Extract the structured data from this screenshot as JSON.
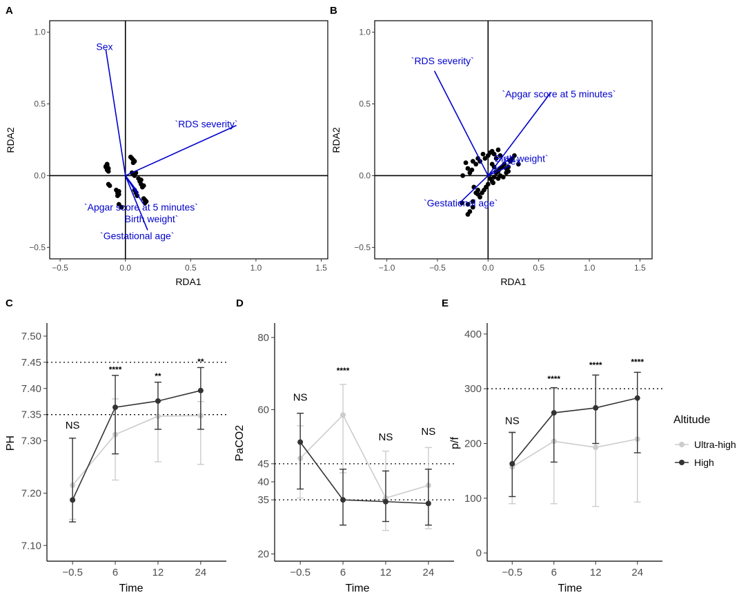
{
  "chart_data": [
    {
      "id": "A",
      "type": "scatter",
      "panel_label": "A",
      "xlabel": "RDA1",
      "ylabel": "RDA2",
      "xlim": [
        -0.58,
        1.55
      ],
      "ylim": [
        -0.58,
        1.08
      ],
      "xticks": [
        "-0.5",
        "0.0",
        "0.5",
        "1.0",
        "1.5"
      ],
      "xtick_values": [
        -0.5,
        0.0,
        0.5,
        1.0,
        1.5
      ],
      "yticks": [
        "-0.5",
        "0.0",
        "0.5",
        "1.0"
      ],
      "ytick_values": [
        -0.5,
        0.0,
        0.5,
        1.0
      ],
      "arrows": [
        {
          "label": "Sex",
          "x": -0.15,
          "y": 0.88,
          "lx": -0.16,
          "ly": 0.9,
          "anchor": "middle"
        },
        {
          "label": "`RDS severity`",
          "x": 0.85,
          "y": 0.35,
          "lx": 0.62,
          "ly": 0.36,
          "anchor": "middle"
        },
        {
          "label": "`Apgar score at 5 minutes`",
          "x": 0.1,
          "y": -0.12,
          "lx": 0.12,
          "ly": -0.22,
          "anchor": "middle"
        },
        {
          "label": "Birth weight`",
          "x": 0.14,
          "y": -0.2,
          "lx": 0.2,
          "ly": -0.3,
          "anchor": "middle"
        },
        {
          "label": "`Gestational age`",
          "x": 0.17,
          "y": -0.38,
          "lx": 0.09,
          "ly": -0.42,
          "anchor": "middle"
        }
      ],
      "points": [
        [
          -0.14,
          0.08
        ],
        [
          -0.14,
          0.07
        ],
        [
          -0.15,
          0.06
        ],
        [
          -0.13,
          0.05
        ],
        [
          -0.14,
          0.04
        ],
        [
          -0.13,
          0.03
        ],
        [
          -0.15,
          0.065
        ],
        [
          -0.12,
          -0.07
        ],
        [
          -0.13,
          -0.06
        ],
        [
          -0.07,
          -0.1
        ],
        [
          -0.06,
          -0.12
        ],
        [
          -0.05,
          -0.11
        ],
        [
          -0.06,
          -0.14
        ],
        [
          -0.05,
          -0.13
        ],
        [
          -0.05,
          -0.2
        ],
        [
          -0.03,
          -0.22
        ],
        [
          0.04,
          0.13
        ],
        [
          0.05,
          0.12
        ],
        [
          0.06,
          0.11
        ],
        [
          0.07,
          0.1
        ],
        [
          0.06,
          0.09
        ],
        [
          0.05,
          0.02
        ],
        [
          0.06,
          0.01
        ],
        [
          0.07,
          0.0
        ],
        [
          0.08,
          0.02
        ],
        [
          0.1,
          -0.02
        ],
        [
          0.11,
          -0.04
        ],
        [
          0.12,
          -0.03
        ],
        [
          0.12,
          -0.06
        ],
        [
          0.13,
          -0.08
        ],
        [
          0.14,
          -0.07
        ],
        [
          0.14,
          -0.16
        ],
        [
          0.15,
          -0.17
        ],
        [
          0.15,
          -0.19
        ],
        [
          0.16,
          -0.18
        ],
        [
          0.08,
          -0.12
        ],
        [
          0.09,
          -0.14
        ],
        [
          0.07,
          -0.1
        ]
      ]
    },
    {
      "id": "B",
      "type": "scatter",
      "panel_label": "B",
      "xlabel": "RDA1",
      "ylabel": "RDA2",
      "xlim": [
        -1.12,
        1.62
      ],
      "ylim": [
        -0.58,
        1.08
      ],
      "xticks": [
        "-1.0",
        "-0.5",
        "0.0",
        "0.5",
        "1.0",
        "1.5"
      ],
      "xtick_values": [
        -1.0,
        -0.5,
        0.0,
        0.5,
        1.0,
        1.5
      ],
      "yticks": [
        "-0.5",
        "0.0",
        "0.5",
        "1.0"
      ],
      "ytick_values": [
        -0.5,
        0.0,
        0.5,
        1.0
      ],
      "arrows": [
        {
          "label": "`RDS severity`",
          "x": -0.53,
          "y": 0.73,
          "lx": -0.45,
          "ly": 0.8,
          "anchor": "middle"
        },
        {
          "label": "`Apgar score at 5 minutes`",
          "x": 0.62,
          "y": 0.58,
          "lx": 0.7,
          "ly": 0.57,
          "anchor": "middle"
        },
        {
          "label": "Birth weight`",
          "x": 0.25,
          "y": 0.14,
          "lx": 0.33,
          "ly": 0.12,
          "anchor": "middle"
        },
        {
          "label": "Sex",
          "x": 0.22,
          "y": 0.07,
          "lx": 0.24,
          "ly": 0.1,
          "anchor": "middle"
        },
        {
          "label": "`Gestational age`",
          "x": -0.28,
          "y": -0.19,
          "lx": -0.27,
          "ly": -0.19,
          "anchor": "middle"
        }
      ],
      "points": [
        [
          -0.25,
          0.0
        ],
        [
          -0.26,
          -0.19
        ],
        [
          -0.2,
          -0.27
        ],
        [
          -0.15,
          -0.22
        ],
        [
          -0.15,
          -0.18
        ],
        [
          -0.1,
          -0.1
        ],
        [
          -0.1,
          0.12
        ],
        [
          -0.08,
          0.1
        ],
        [
          -0.05,
          0.15
        ],
        [
          -0.03,
          0.12
        ],
        [
          0.0,
          0.14
        ],
        [
          0.02,
          0.16
        ],
        [
          0.04,
          0.17
        ],
        [
          0.06,
          0.15
        ],
        [
          0.08,
          0.12
        ],
        [
          0.1,
          0.18
        ],
        [
          0.12,
          0.14
        ],
        [
          -0.2,
          0.05
        ],
        [
          -0.18,
          0.02
        ],
        [
          -0.12,
          0.08
        ],
        [
          -0.15,
          0.1
        ],
        [
          -0.22,
          0.09
        ],
        [
          -0.16,
          0.04
        ],
        [
          0.02,
          -0.02
        ],
        [
          0.04,
          -0.04
        ],
        [
          0.06,
          -0.01
        ],
        [
          0.08,
          0.02
        ],
        [
          0.1,
          0.03
        ],
        [
          0.12,
          0.05
        ],
        [
          0.14,
          0.06
        ],
        [
          0.16,
          0.08
        ],
        [
          0.18,
          0.05
        ],
        [
          0.2,
          0.03
        ],
        [
          0.22,
          0.1
        ],
        [
          0.24,
          0.12
        ],
        [
          0.26,
          0.14
        ],
        [
          0.3,
          0.08
        ],
        [
          0.0,
          -0.06
        ],
        [
          -0.02,
          -0.08
        ],
        [
          -0.04,
          -0.1
        ],
        [
          -0.06,
          -0.12
        ],
        [
          -0.08,
          -0.15
        ],
        [
          -0.1,
          -0.13
        ],
        [
          0.05,
          -0.05
        ],
        [
          0.1,
          -0.02
        ],
        [
          0.15,
          -0.01
        ],
        [
          0.18,
          0.02
        ],
        [
          0.2,
          0.06
        ],
        [
          0.12,
          0.0
        ],
        [
          -0.12,
          -0.12
        ],
        [
          -0.14,
          -0.08
        ],
        [
          -0.18,
          -0.25
        ],
        [
          -0.2,
          -0.2
        ],
        [
          0.04,
          0.08
        ],
        [
          0.06,
          0.06
        ]
      ]
    },
    {
      "id": "C",
      "type": "line",
      "panel_label": "C",
      "xlabel": "Time",
      "ylabel": "PH",
      "categories": [
        "-0.5",
        "6",
        "12",
        "24"
      ],
      "ylim": [
        7.07,
        7.525
      ],
      "yticks": [
        "7.10",
        "7.20",
        "7.30",
        "7.35",
        "7.40",
        "7.45",
        "7.50"
      ],
      "ytick_values": [
        7.1,
        7.2,
        7.3,
        7.35,
        7.4,
        7.45,
        7.5
      ],
      "hlines": [
        7.35,
        7.45
      ],
      "series": [
        {
          "name": "Ultra-high",
          "values": [
            7.215,
            7.312,
            7.347,
            7.348
          ],
          "lower": [
            7.15,
            7.225,
            7.26,
            7.255
          ],
          "upper": [
            7.305,
            7.38,
            7.375,
            7.375
          ]
        },
        {
          "name": "High",
          "values": [
            7.187,
            7.364,
            7.376,
            7.396
          ],
          "lower": [
            7.145,
            7.275,
            7.322,
            7.322
          ],
          "upper": [
            7.305,
            7.425,
            7.412,
            7.44
          ]
        }
      ],
      "significance": [
        "NS",
        "****",
        "**",
        "**"
      ],
      "sig_y": [
        7.323,
        7.431,
        7.418,
        7.446
      ]
    },
    {
      "id": "D",
      "type": "line",
      "panel_label": "D",
      "xlabel": "Time",
      "ylabel": "PaCO2",
      "categories": [
        "-0.5",
        "6",
        "12",
        "24"
      ],
      "ylim": [
        18,
        84
      ],
      "yticks": [
        "20",
        "35",
        "40",
        "45",
        "60",
        "80"
      ],
      "ytick_values": [
        20,
        35,
        40,
        45,
        60,
        80
      ],
      "hlines": [
        35,
        45
      ],
      "series": [
        {
          "name": "Ultra-high",
          "values": [
            46.5,
            58.5,
            35.5,
            39.0
          ],
          "lower": [
            35.5,
            42.5,
            26.5,
            27.0
          ],
          "upper": [
            55.5,
            67.0,
            48.5,
            49.5
          ]
        },
        {
          "name": "High",
          "values": [
            51.0,
            35.0,
            34.5,
            34.0
          ],
          "lower": [
            38.0,
            28.0,
            29.0,
            28.0
          ],
          "upper": [
            59.0,
            43.5,
            43.0,
            43.5
          ]
        }
      ],
      "significance": [
        "NS",
        "****",
        "NS",
        "NS"
      ],
      "sig_y": [
        62.5,
        70.0,
        51.5,
        53.0
      ]
    },
    {
      "id": "E",
      "type": "line",
      "panel_label": "E",
      "xlabel": "Time",
      "ylabel": "p/f",
      "categories": [
        "-0.5",
        "6",
        "12",
        "24"
      ],
      "ylim": [
        -15,
        420
      ],
      "yticks": [
        "0",
        "100",
        "200",
        "300",
        "400"
      ],
      "ytick_values": [
        0,
        100,
        200,
        300,
        400
      ],
      "hlines": [
        300
      ],
      "series": [
        {
          "name": "Ultra-high",
          "values": [
            157,
            204,
            193,
            208
          ],
          "lower": [
            90,
            90,
            85,
            93
          ],
          "upper": [
            222,
            300,
            325,
            330
          ]
        },
        {
          "name": "High",
          "values": [
            163,
            256,
            265,
            283
          ],
          "lower": [
            103,
            166,
            200,
            183
          ],
          "upper": [
            220,
            302,
            325,
            330
          ]
        }
      ],
      "significance": [
        "NS",
        "****",
        "****",
        "****"
      ],
      "sig_y": [
        235,
        313,
        338,
        344
      ]
    }
  ],
  "legend": {
    "title": "Altitude",
    "items": [
      {
        "label": "Ultra-high",
        "color": "#cccccc"
      },
      {
        "label": "High",
        "color": "#333333"
      }
    ]
  },
  "colors": {
    "arrow": "#0000cc",
    "point": "#000000",
    "ultra": "#cccccc",
    "high": "#333333"
  }
}
